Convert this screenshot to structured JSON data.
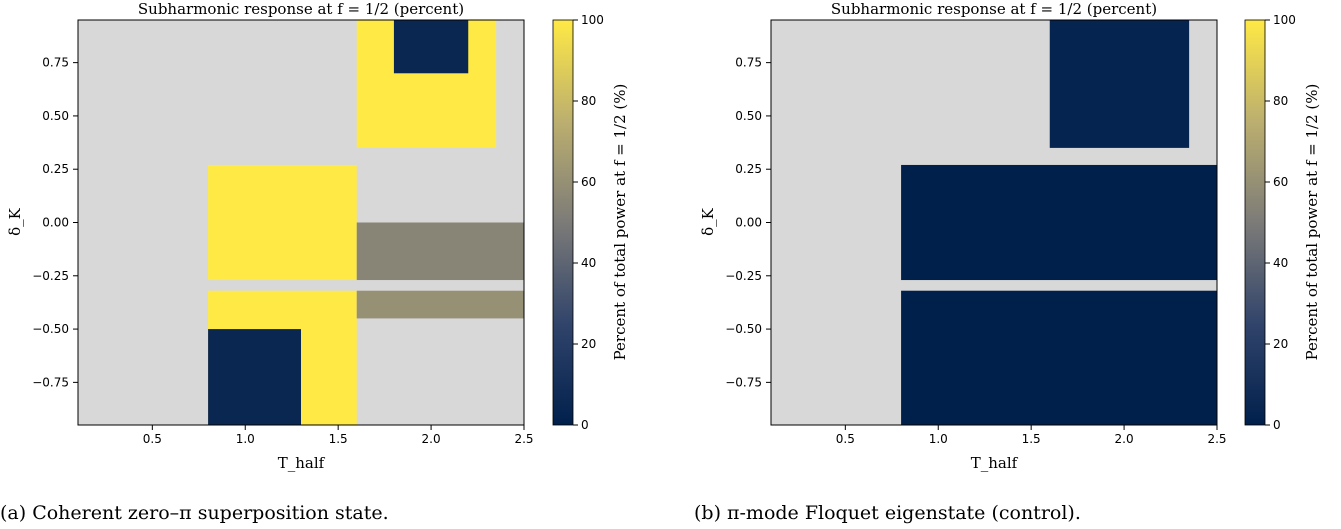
{
  "panels": [
    {
      "title": "Subharmonic response at f = 1/2 (percent)",
      "xlabel": "T_half",
      "ylabel": "δ_K",
      "caption": "(a) Coherent zero–π superposition state.",
      "colorbar_label": "Percent of total power at f = 1/2 (%)"
    },
    {
      "title": "Subharmonic response at f = 1/2 (percent)",
      "xlabel": "T_half",
      "ylabel": "δ_K",
      "caption": "(b) π-mode Floquet eigenstate (control).",
      "colorbar_label": "Percent of total power at f = 1/2 (%)"
    }
  ],
  "chart_data": [
    {
      "type": "heatmap",
      "title": "Subharmonic response at f = 1/2 (percent)",
      "xlabel": "T_half",
      "ylabel": "δ_K",
      "xlim": [
        0.1,
        2.5
      ],
      "ylim": [
        -0.95,
        0.95
      ],
      "xticks": [
        "0.5",
        "1.0",
        "1.5",
        "2.0",
        "2.5"
      ],
      "yticks": [
        "0.75",
        "0.50",
        "0.25",
        "0.00",
        "−0.25",
        "−0.50",
        "−0.75"
      ],
      "colorbar": {
        "range": [
          0,
          100
        ],
        "ticks": [
          "0",
          "20",
          "40",
          "60",
          "80",
          "100"
        ],
        "label": "Percent of total power at f = 1/2 (%)"
      },
      "nodata_color": "#d8d8d8",
      "regions": [
        {
          "x": [
            0.8,
            1.6
          ],
          "y": [
            -0.27,
            0.27
          ],
          "value": 100
        },
        {
          "x": [
            1.6,
            2.5
          ],
          "y": [
            -0.27,
            0.0
          ],
          "value": 55
        },
        {
          "x": [
            0.8,
            1.6
          ],
          "y": [
            -0.95,
            -0.32
          ],
          "value": 100
        },
        {
          "x": [
            0.8,
            1.3
          ],
          "y": [
            -0.95,
            -0.5
          ],
          "value": 5
        },
        {
          "x": [
            1.6,
            2.35
          ],
          "y": [
            0.35,
            0.95
          ],
          "value": 100
        },
        {
          "x": [
            1.8,
            2.2
          ],
          "y": [
            0.7,
            0.95
          ],
          "value": 5
        },
        {
          "x": [
            1.6,
            2.5
          ],
          "y": [
            -0.45,
            -0.32
          ],
          "value": 60
        }
      ]
    },
    {
      "type": "heatmap",
      "title": "Subharmonic response at f = 1/2 (percent)",
      "xlabel": "T_half",
      "ylabel": "δ_K",
      "xlim": [
        0.1,
        2.5
      ],
      "ylim": [
        -0.95,
        0.95
      ],
      "xticks": [
        "0.5",
        "1.0",
        "1.5",
        "2.0",
        "2.5"
      ],
      "yticks": [
        "0.75",
        "0.50",
        "0.25",
        "0.00",
        "−0.25",
        "−0.50",
        "−0.75"
      ],
      "colorbar": {
        "range": [
          0,
          100
        ],
        "ticks": [
          "0",
          "20",
          "40",
          "60",
          "80",
          "100"
        ],
        "label": "Percent of total power at f = 1/2 (%)"
      },
      "nodata_color": "#d8d8d8",
      "regions": [
        {
          "x": [
            0.8,
            2.5
          ],
          "y": [
            -0.27,
            0.27
          ],
          "value": 0
        },
        {
          "x": [
            0.8,
            2.5
          ],
          "y": [
            -0.95,
            -0.32
          ],
          "value": 0
        },
        {
          "x": [
            1.6,
            2.35
          ],
          "y": [
            0.35,
            0.95
          ],
          "value": 3
        }
      ]
    }
  ]
}
